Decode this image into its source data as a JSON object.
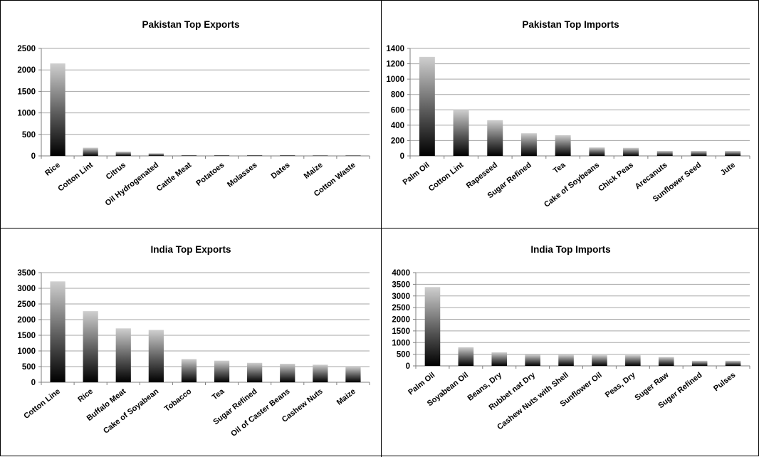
{
  "chart_data": [
    {
      "type": "bar",
      "title": "Pakistan Top Exports",
      "categories": [
        "Rice",
        "Cotton Lint",
        "Citrus",
        "Oil Hydrogenated",
        "Cattle Meat",
        "Potatoes",
        "Molasses",
        "Dates",
        "Maize",
        "Cotton Waste"
      ],
      "values": [
        2150,
        190,
        100,
        60,
        20,
        20,
        20,
        20,
        15,
        15
      ],
      "ylim": [
        0,
        2500
      ],
      "yticks": [
        0,
        500,
        1000,
        1500,
        2000,
        2500
      ],
      "grid": true
    },
    {
      "type": "bar",
      "title": "Pakistan Top Imports",
      "categories": [
        "Palm Oil",
        "Cotton Lint",
        "Rapeseed",
        "Sugar Refined",
        "Tea",
        "Cake of Soybeans",
        "Chick Peas",
        "Arecanuts",
        "Sunflower Seed",
        "Jute"
      ],
      "values": [
        1290,
        600,
        465,
        295,
        270,
        110,
        105,
        65,
        65,
        65
      ],
      "ylim": [
        0,
        1400
      ],
      "yticks": [
        0,
        200,
        400,
        600,
        800,
        1000,
        1200,
        1400
      ],
      "grid": true
    },
    {
      "type": "bar",
      "title": "India Top Exports",
      "categories": [
        "Cotton Line",
        "Rice",
        "Buffalo Meat",
        "Cake of Soyabean",
        "Tobacco",
        "Tea",
        "Sugar Refined",
        "Oil of Caster Beans",
        "Cashew Nuts",
        "Maize"
      ],
      "values": [
        3220,
        2270,
        1720,
        1670,
        740,
        690,
        620,
        590,
        560,
        500
      ],
      "ylim": [
        0,
        3500
      ],
      "yticks": [
        0,
        500,
        1000,
        1500,
        2000,
        2500,
        3000,
        3500
      ],
      "grid": true
    },
    {
      "type": "bar",
      "title": "India Top Imports",
      "categories": [
        "Palm Oil",
        "Soyabean Oil",
        "Beans, Dry",
        "Rubbet nat Dry",
        "Cashew Nuts with Shell",
        "Sunflower Oil",
        "Peas, Dry",
        "Suger Raw",
        "Suger Refined",
        "Pulses"
      ],
      "values": [
        3380,
        800,
        580,
        480,
        470,
        460,
        460,
        380,
        220,
        220
      ],
      "ylim": [
        0,
        4000
      ],
      "yticks": [
        0,
        500,
        1000,
        1500,
        2000,
        2500,
        3000,
        3500,
        4000
      ],
      "grid": true
    }
  ]
}
